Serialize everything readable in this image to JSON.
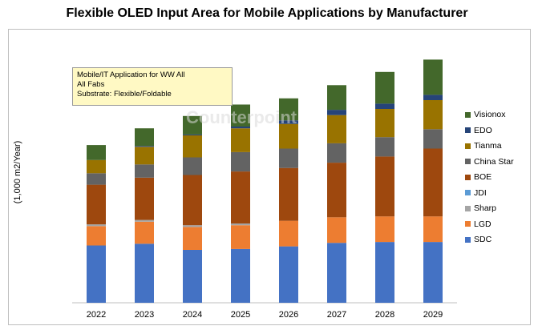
{
  "title": "Flexible OLED Input Area for Mobile Applications by Manufacturer",
  "note": {
    "lines": [
      "Mobile/IT Application for WW All",
      "All Fabs",
      "Substrate: Flexible/Foldable"
    ]
  },
  "watermark": "Counterpoint",
  "chart_data": {
    "type": "bar",
    "stacked": true,
    "title": "Flexible OLED Input Area for Mobile Applications by Manufacturer",
    "ylabel": "(1,000 m2/Year)",
    "xlabel": "",
    "categories": [
      "2022",
      "2023",
      "2024",
      "2025",
      "2026",
      "2027",
      "2028",
      "2029"
    ],
    "ylim": [
      0,
      280
    ],
    "legend_position": "right",
    "grid": false,
    "series": [
      {
        "name": "SDC",
        "color": "#4472C4",
        "values": [
          65,
          67,
          60,
          61,
          64,
          68,
          69,
          69
        ]
      },
      {
        "name": "LGD",
        "color": "#ED7D31",
        "values": [
          22,
          25,
          26,
          27,
          29,
          29,
          29,
          29
        ]
      },
      {
        "name": "Sharp",
        "color": "#A5A5A5",
        "values": [
          2,
          2,
          2,
          2,
          0,
          0,
          0,
          0
        ]
      },
      {
        "name": "JDI",
        "color": "#5B9BD5",
        "values": [
          0,
          0,
          0,
          0,
          0,
          0,
          0,
          0
        ]
      },
      {
        "name": "BOE",
        "color": "#9E480E",
        "values": [
          45,
          48,
          57,
          59,
          60,
          62,
          68,
          77
        ]
      },
      {
        "name": "China Star",
        "color": "#636363",
        "values": [
          13,
          15,
          20,
          22,
          22,
          22,
          22,
          22
        ]
      },
      {
        "name": "Tianma",
        "color": "#997300",
        "values": [
          15,
          20,
          25,
          27,
          28,
          32,
          32,
          33
        ]
      },
      {
        "name": "EDO",
        "color": "#264478",
        "values": [
          0,
          1,
          1,
          2,
          4,
          6,
          6,
          6
        ]
      },
      {
        "name": "Visionox",
        "color": "#43682B",
        "values": [
          17,
          20,
          21,
          25,
          25,
          28,
          36,
          40
        ]
      }
    ]
  }
}
